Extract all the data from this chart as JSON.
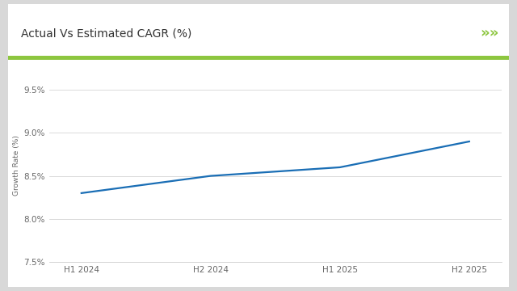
{
  "title": "Actual Vs Estimated CAGR (%)",
  "x_labels": [
    "H1 2024",
    "H2 2024",
    "H1 2025",
    "H2 2025"
  ],
  "x_values": [
    0,
    1,
    2,
    3
  ],
  "y_values": [
    8.3,
    8.5,
    8.6,
    8.9
  ],
  "ylabel": "Growth Rate (%)",
  "ylim": [
    7.5,
    9.75
  ],
  "yticks": [
    7.5,
    8.0,
    8.5,
    9.0,
    9.5
  ],
  "ytick_labels": [
    "7.5%",
    "8.0%",
    "8.5%",
    "9.0%",
    "9.5%"
  ],
  "line_color": "#1a6eb5",
  "line_width": 1.6,
  "bg_outer": "#d8d8d8",
  "bg_inner": "#ffffff",
  "title_fontsize": 10,
  "axis_fontsize": 7.5,
  "ylabel_fontsize": 6.5,
  "green_line_color": "#8dc63f",
  "arrow_color": "#8dc63f",
  "title_color": "#333333",
  "grid_color": "#cccccc",
  "tick_color": "#666666"
}
